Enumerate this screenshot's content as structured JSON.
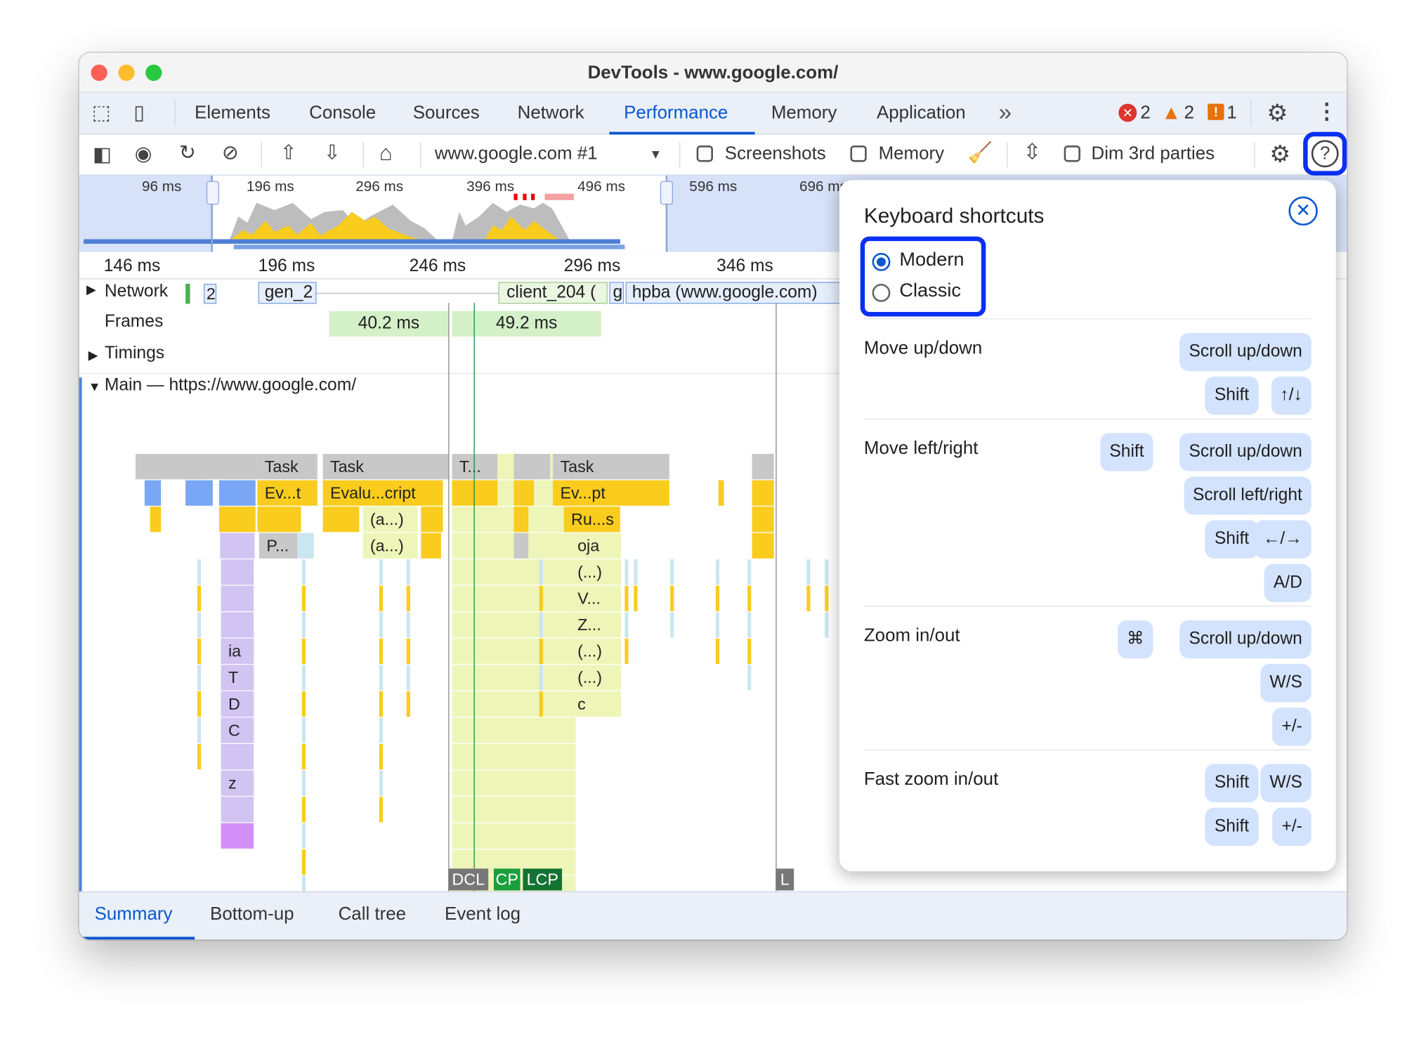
{
  "window": {
    "title": "DevTools - www.google.com/"
  },
  "tabs": [
    {
      "label": "Elements"
    },
    {
      "label": "Console"
    },
    {
      "label": "Sources"
    },
    {
      "label": "Network"
    },
    {
      "label": "Performance",
      "active": true
    },
    {
      "label": "Memory"
    },
    {
      "label": "Application"
    }
  ],
  "more_tabs": "»",
  "status": {
    "errors": "2",
    "warnings": "2",
    "issues": "1"
  },
  "toolbar": {
    "recording": "www.google.com #1",
    "screenshots_label": "Screenshots",
    "screenshots_checked": false,
    "memory_label": "Memory",
    "memory_checked": false,
    "dim_label": "Dim 3rd parties",
    "dim_checked": false
  },
  "overview": {
    "labels": [
      "96 ms",
      "196 ms",
      "296 ms",
      "396 ms",
      "496 ms",
      "596 ms",
      "696 ms"
    ]
  },
  "ruler": {
    "labels": [
      "146 ms",
      "196 ms",
      "246 ms",
      "296 ms",
      "346 ms"
    ]
  },
  "tracks": {
    "network": "Network",
    "network_items": [
      "2",
      "gen_2",
      "client_204 (",
      "g",
      "hpba (www.google.com)"
    ],
    "frames": "Frames",
    "frame_items": [
      "40.2 ms",
      "49.2 ms"
    ],
    "timings": "Timings",
    "main": "Main — https://www.google.com/"
  },
  "flame": {
    "row0": [
      "Task",
      "Task",
      "T...",
      "Task"
    ],
    "row1": [
      "Ev...t",
      "Evalu...cript",
      "Ev...pt"
    ],
    "row2": [
      "(a...)",
      "Ru...s"
    ],
    "row3": [
      "P...",
      "(a...)",
      "oja"
    ],
    "col_a": [
      "ia",
      "T",
      "D",
      "C",
      "z"
    ],
    "col_b": [
      "(...)",
      "V...",
      "Z...",
      "(...)",
      "(...)",
      "c"
    ]
  },
  "markers": {
    "dcl": "DCL",
    "fcp": "CP",
    "lcp": "LCP",
    "l": "L"
  },
  "bottom_tabs": [
    {
      "label": "Summary",
      "active": true
    },
    {
      "label": "Bottom-up"
    },
    {
      "label": "Call tree"
    },
    {
      "label": "Event log"
    }
  ],
  "shortcuts": {
    "title": "Keyboard shortcuts",
    "modes": [
      {
        "label": "Modern",
        "selected": true
      },
      {
        "label": "Classic",
        "selected": false
      }
    ],
    "groups": [
      {
        "label": "Move up/down",
        "keys": [
          [
            "Scroll up/down"
          ],
          [
            "Shift",
            "↑/↓"
          ]
        ]
      },
      {
        "label": "Move left/right",
        "keys": [
          [
            "Shift",
            "Scroll up/down"
          ],
          [
            "Scroll left/right"
          ],
          [
            "Shift",
            "←/→"
          ],
          [
            "A/D"
          ]
        ]
      },
      {
        "label": "Zoom in/out",
        "keys": [
          [
            "⌘",
            "Scroll up/down"
          ],
          [
            "W/S"
          ],
          [
            "+/-"
          ]
        ]
      },
      {
        "label": "Fast zoom in/out",
        "keys": [
          [
            "Shift",
            "W/S"
          ],
          [
            "Shift",
            "+/-"
          ]
        ]
      }
    ]
  },
  "colors": {
    "accent": "#0b57d0",
    "highlight": "#0a2ff5",
    "key_bg": "#d3e3fd",
    "task": "#c8c8c8",
    "script": "#f9cc1e",
    "frame": "#d4f0c8"
  }
}
